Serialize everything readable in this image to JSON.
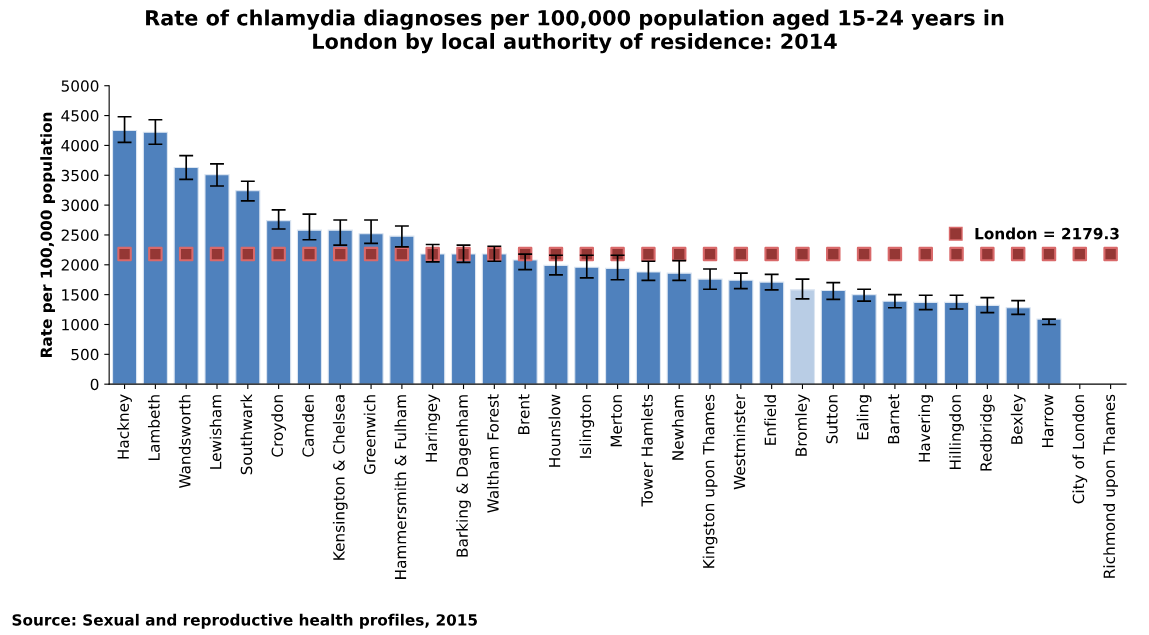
{
  "chart_data": {
    "type": "bar",
    "title": "Rate of chlamydia diagnoses per 100,000 population aged 15-24 years in\nLondon by local authority of residence: 2014",
    "ylabel": "Rate per 100,000 population",
    "categories": [
      "Hackney",
      "Lambeth",
      "Wandsworth",
      "Lewisham",
      "Southwark",
      "Croydon",
      "Camden",
      "Kensington & Chelsea",
      "Greenwich",
      "Hammersmith & Fulham",
      "Haringey",
      "Barking & Dagenham",
      "Waltham Forest",
      "Brent",
      "Hounslow",
      "Islington",
      "Merton",
      "Tower Hamlets",
      "Newham",
      "Kingston upon Thames",
      "Westminster",
      "Enfield",
      "Bromley",
      "Sutton",
      "Ealing",
      "Barnet",
      "Havering",
      "Hillingdon",
      "Redbridge",
      "Bexley",
      "Harrow",
      "City of London",
      "Richmond upon Thames"
    ],
    "series": [
      {
        "colors": [
          "#4f81bd",
          "#4f81bd",
          "#4f81bd",
          "#4f81bd",
          "#4f81bd",
          "#4f81bd",
          "#4f81bd",
          "#4f81bd",
          "#4f81bd",
          "#4f81bd",
          "#4f81bd",
          "#4f81bd",
          "#4f81bd",
          "#4f81bd",
          "#4f81bd",
          "#4f81bd",
          "#4f81bd",
          "#4f81bd",
          "#4f81bd",
          "#4f81bd",
          "#4f81bd",
          "#4f81bd",
          "#b9cde5",
          "#4f81bd",
          "#4f81bd",
          "#4f81bd",
          "#4f81bd",
          "#4f81bd",
          "#4f81bd",
          "#4f81bd",
          "#4f81bd",
          "#4f81bd",
          "#4f81bd"
        ],
        "values": [
          4250,
          4220,
          3630,
          3510,
          3240,
          2740,
          2580,
          2580,
          2520,
          2480,
          2180,
          2180,
          2180,
          2080,
          1990,
          1960,
          1940,
          1880,
          1860,
          1760,
          1740,
          1710,
          1580,
          1570,
          1500,
          1390,
          1370,
          1370,
          1320,
          1280,
          1090,
          null,
          null
        ],
        "errors": [
          [
            4050,
            4480
          ],
          [
            4020,
            4430
          ],
          [
            3430,
            3830
          ],
          [
            3320,
            3690
          ],
          [
            3070,
            3400
          ],
          [
            2600,
            2920
          ],
          [
            2420,
            2850
          ],
          [
            2330,
            2750
          ],
          [
            2360,
            2750
          ],
          [
            2300,
            2650
          ],
          [
            2050,
            2340
          ],
          [
            2040,
            2330
          ],
          [
            2060,
            2310
          ],
          [
            1920,
            2180
          ],
          [
            1830,
            2160
          ],
          [
            1780,
            2160
          ],
          [
            1750,
            2160
          ],
          [
            1740,
            2060
          ],
          [
            1740,
            2070
          ],
          [
            1590,
            1930
          ],
          [
            1600,
            1860
          ],
          [
            1580,
            1840
          ],
          [
            1430,
            1760
          ],
          [
            1420,
            1700
          ],
          [
            1390,
            1590
          ],
          [
            1280,
            1500
          ],
          [
            1250,
            1490
          ],
          [
            1260,
            1490
          ],
          [
            1200,
            1450
          ],
          [
            1170,
            1400
          ],
          [
            1000,
            1090
          ],
          null,
          null
        ]
      },
      {
        "type": "scatter",
        "name": "London = 2179.3",
        "color": "#953735",
        "marker": "square",
        "values": [
          2179.3,
          2179.3,
          2179.3,
          2179.3,
          2179.3,
          2179.3,
          2179.3,
          2179.3,
          2179.3,
          2179.3,
          2179.3,
          2179.3,
          2179.3,
          2179.3,
          2179.3,
          2179.3,
          2179.3,
          2179.3,
          2179.3,
          2179.3,
          2179.3,
          2179.3,
          2179.3,
          2179.3,
          2179.3,
          2179.3,
          2179.3,
          2179.3,
          2179.3,
          2179.3,
          2179.3,
          2179.3,
          2179.3
        ]
      }
    ],
    "ylim": [
      0,
      5000
    ],
    "yticks": [
      0,
      500,
      1000,
      1500,
      2000,
      2500,
      3000,
      3500,
      4000,
      4500,
      5000
    ],
    "grid": false,
    "legend": "right",
    "annotations": [
      "Source: Sexual and reproductive health profiles, 2015"
    ]
  }
}
